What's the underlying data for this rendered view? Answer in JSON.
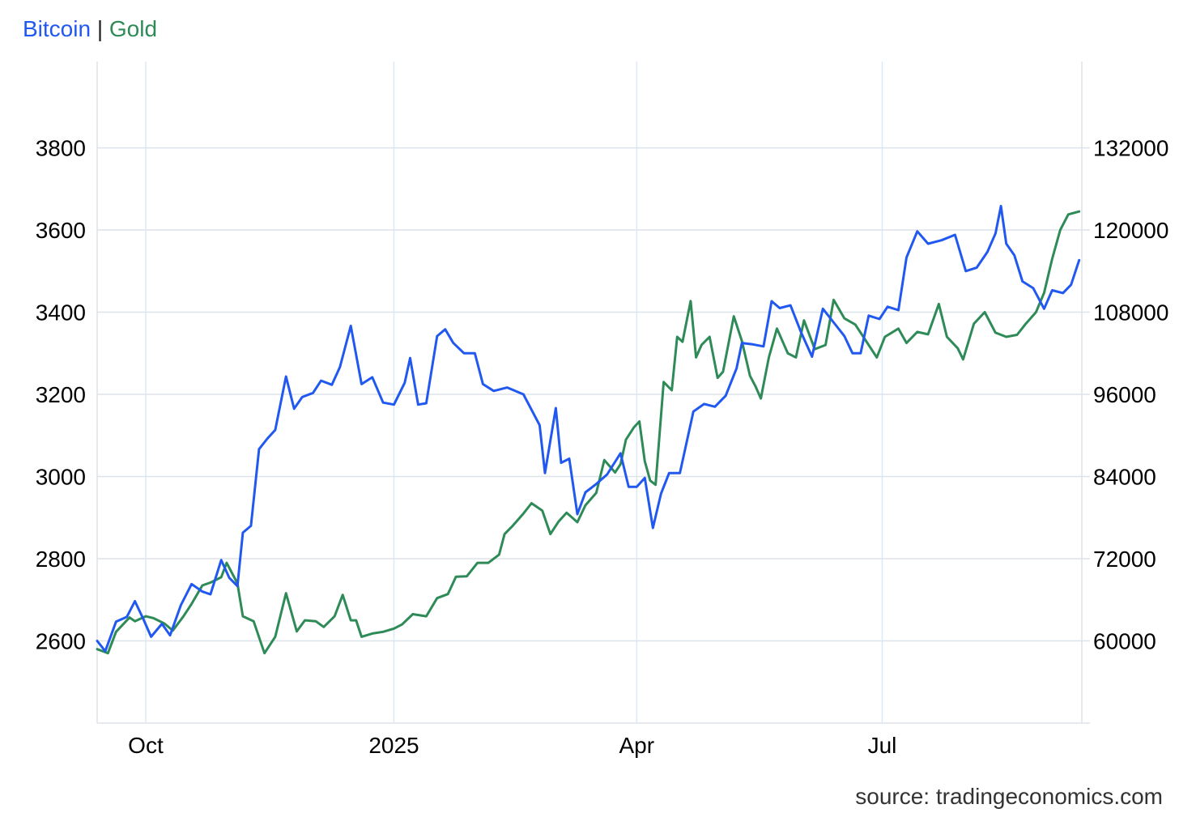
{
  "legend": {
    "bitcoin_label": "Bitcoin",
    "separator": "|",
    "gold_label": "Gold"
  },
  "source": "source: tradingeconomics.com",
  "colors": {
    "bitcoin": "#2158f0",
    "gold": "#2e8b57",
    "grid": "#dde3ea",
    "vgrid": "#dbeaf7"
  },
  "chart_data": {
    "type": "line",
    "grid": true,
    "legend_position": "top-left",
    "x_ticks": [
      {
        "label": "Oct",
        "date": "2024-10-01"
      },
      {
        "label": "2025",
        "date": "2025-01-01"
      },
      {
        "label": "Apr",
        "date": "2025-04-01"
      },
      {
        "label": "Jul",
        "date": "2025-07-01"
      }
    ],
    "xlim": [
      "2024-09-13",
      "2025-09-13"
    ],
    "y_left": {
      "ticks": [
        2600,
        2800,
        3000,
        3200,
        3400,
        3600,
        3800
      ],
      "ylim": [
        2400,
        4010
      ]
    },
    "y_right": {
      "ticks": [
        60000,
        72000,
        84000,
        96000,
        108000,
        120000,
        132000
      ],
      "ylim": [
        48000,
        144600
      ]
    },
    "series": [
      {
        "name": "Bitcoin",
        "axis": "right",
        "color": "#2158f0",
        "points": [
          [
            "2024-09-13",
            60000
          ],
          [
            "2024-09-16",
            58500
          ],
          [
            "2024-09-20",
            62800
          ],
          [
            "2024-09-24",
            63500
          ],
          [
            "2024-09-27",
            65800
          ],
          [
            "2024-09-30",
            63300
          ],
          [
            "2024-10-03",
            60600
          ],
          [
            "2024-10-07",
            62500
          ],
          [
            "2024-10-10",
            60800
          ],
          [
            "2024-10-14",
            65200
          ],
          [
            "2024-10-18",
            68300
          ],
          [
            "2024-10-22",
            67200
          ],
          [
            "2024-10-25",
            66800
          ],
          [
            "2024-10-29",
            71800
          ],
          [
            "2024-11-01",
            69200
          ],
          [
            "2024-11-04",
            68000
          ],
          [
            "2024-11-06",
            75800
          ],
          [
            "2024-11-09",
            76800
          ],
          [
            "2024-11-12",
            88000
          ],
          [
            "2024-11-15",
            89500
          ],
          [
            "2024-11-18",
            90800
          ],
          [
            "2024-11-22",
            98600
          ],
          [
            "2024-11-25",
            93900
          ],
          [
            "2024-11-28",
            95600
          ],
          [
            "2024-12-02",
            96200
          ],
          [
            "2024-12-05",
            98000
          ],
          [
            "2024-12-09",
            97400
          ],
          [
            "2024-12-12",
            100000
          ],
          [
            "2024-12-16",
            106000
          ],
          [
            "2024-12-20",
            97500
          ],
          [
            "2024-12-24",
            98500
          ],
          [
            "2024-12-28",
            94800
          ],
          [
            "2025-01-01",
            94500
          ],
          [
            "2025-01-05",
            97700
          ],
          [
            "2025-01-07",
            101300
          ],
          [
            "2025-01-10",
            94500
          ],
          [
            "2025-01-13",
            94700
          ],
          [
            "2025-01-17",
            104500
          ],
          [
            "2025-01-20",
            105500
          ],
          [
            "2025-01-23",
            103500
          ],
          [
            "2025-01-27",
            102000
          ],
          [
            "2025-01-31",
            102000
          ],
          [
            "2025-02-03",
            97500
          ],
          [
            "2025-02-07",
            96500
          ],
          [
            "2025-02-12",
            97000
          ],
          [
            "2025-02-18",
            96000
          ],
          [
            "2025-02-24",
            91500
          ],
          [
            "2025-02-26",
            84500
          ],
          [
            "2025-03-02",
            94000
          ],
          [
            "2025-03-04",
            86000
          ],
          [
            "2025-03-07",
            86600
          ],
          [
            "2025-03-10",
            78500
          ],
          [
            "2025-03-13",
            81700
          ],
          [
            "2025-03-17",
            82900
          ],
          [
            "2025-03-21",
            84300
          ],
          [
            "2025-03-26",
            87400
          ],
          [
            "2025-03-29",
            82500
          ],
          [
            "2025-04-01",
            82500
          ],
          [
            "2025-04-04",
            83800
          ],
          [
            "2025-04-07",
            76500
          ],
          [
            "2025-04-10",
            81500
          ],
          [
            "2025-04-13",
            84500
          ],
          [
            "2025-04-17",
            84500
          ],
          [
            "2025-04-22",
            93500
          ],
          [
            "2025-04-26",
            94600
          ],
          [
            "2025-04-30",
            94200
          ],
          [
            "2025-05-04",
            95800
          ],
          [
            "2025-05-08",
            99800
          ],
          [
            "2025-05-10",
            103500
          ],
          [
            "2025-05-14",
            103300
          ],
          [
            "2025-05-18",
            103000
          ],
          [
            "2025-05-21",
            109600
          ],
          [
            "2025-05-24",
            108600
          ],
          [
            "2025-05-28",
            109000
          ],
          [
            "2025-06-01",
            105000
          ],
          [
            "2025-06-05",
            101500
          ],
          [
            "2025-06-09",
            108500
          ],
          [
            "2025-06-12",
            107000
          ],
          [
            "2025-06-17",
            104500
          ],
          [
            "2025-06-20",
            102000
          ],
          [
            "2025-06-23",
            102000
          ],
          [
            "2025-06-26",
            107500
          ],
          [
            "2025-06-30",
            107000
          ],
          [
            "2025-07-03",
            108800
          ],
          [
            "2025-07-07",
            108300
          ],
          [
            "2025-07-10",
            116000
          ],
          [
            "2025-07-14",
            119800
          ],
          [
            "2025-07-18",
            118000
          ],
          [
            "2025-07-23",
            118500
          ],
          [
            "2025-07-28",
            119300
          ],
          [
            "2025-08-01",
            114000
          ],
          [
            "2025-08-05",
            114500
          ],
          [
            "2025-08-09",
            116800
          ],
          [
            "2025-08-12",
            119500
          ],
          [
            "2025-08-14",
            123500
          ],
          [
            "2025-08-16",
            118000
          ],
          [
            "2025-08-19",
            116300
          ],
          [
            "2025-08-22",
            112500
          ],
          [
            "2025-08-26",
            111500
          ],
          [
            "2025-08-30",
            108500
          ],
          [
            "2025-09-02",
            111200
          ],
          [
            "2025-09-06",
            110800
          ],
          [
            "2025-09-09",
            112000
          ],
          [
            "2025-09-12",
            115600
          ]
        ]
      },
      {
        "name": "Gold",
        "axis": "left",
        "color": "#2e8b57",
        "points": [
          [
            "2024-09-13",
            2580
          ],
          [
            "2024-09-17",
            2570
          ],
          [
            "2024-09-20",
            2622
          ],
          [
            "2024-09-25",
            2657
          ],
          [
            "2024-09-27",
            2648
          ],
          [
            "2024-10-01",
            2660
          ],
          [
            "2024-10-04",
            2655
          ],
          [
            "2024-10-08",
            2642
          ],
          [
            "2024-10-11",
            2625
          ],
          [
            "2024-10-15",
            2660
          ],
          [
            "2024-10-18",
            2690
          ],
          [
            "2024-10-22",
            2735
          ],
          [
            "2024-10-25",
            2742
          ],
          [
            "2024-10-29",
            2755
          ],
          [
            "2024-10-31",
            2790
          ],
          [
            "2024-11-04",
            2740
          ],
          [
            "2024-11-06",
            2660
          ],
          [
            "2024-11-10",
            2648
          ],
          [
            "2024-11-14",
            2570
          ],
          [
            "2024-11-18",
            2610
          ],
          [
            "2024-11-22",
            2716
          ],
          [
            "2024-11-26",
            2623
          ],
          [
            "2024-11-29",
            2650
          ],
          [
            "2024-12-03",
            2648
          ],
          [
            "2024-12-06",
            2634
          ],
          [
            "2024-12-10",
            2660
          ],
          [
            "2024-12-13",
            2712
          ],
          [
            "2024-12-16",
            2650
          ],
          [
            "2024-12-18",
            2650
          ],
          [
            "2024-12-20",
            2610
          ],
          [
            "2024-12-24",
            2618
          ],
          [
            "2024-12-28",
            2622
          ],
          [
            "2025-01-01",
            2630
          ],
          [
            "2025-01-04",
            2640
          ],
          [
            "2025-01-08",
            2665
          ],
          [
            "2025-01-13",
            2660
          ],
          [
            "2025-01-17",
            2704
          ],
          [
            "2025-01-21",
            2714
          ],
          [
            "2025-01-24",
            2756
          ],
          [
            "2025-01-28",
            2757
          ],
          [
            "2025-02-01",
            2790
          ],
          [
            "2025-02-05",
            2790
          ],
          [
            "2025-02-09",
            2810
          ],
          [
            "2025-02-11",
            2860
          ],
          [
            "2025-02-14",
            2880
          ],
          [
            "2025-02-18",
            2910
          ],
          [
            "2025-02-21",
            2935
          ],
          [
            "2025-02-25",
            2917
          ],
          [
            "2025-02-28",
            2860
          ],
          [
            "2025-03-03",
            2890
          ],
          [
            "2025-03-06",
            2912
          ],
          [
            "2025-03-10",
            2889
          ],
          [
            "2025-03-13",
            2930
          ],
          [
            "2025-03-17",
            2960
          ],
          [
            "2025-03-20",
            3040
          ],
          [
            "2025-03-24",
            3010
          ],
          [
            "2025-03-26",
            3030
          ],
          [
            "2025-03-28",
            3090
          ],
          [
            "2025-03-31",
            3120
          ],
          [
            "2025-04-02",
            3134
          ],
          [
            "2025-04-04",
            3037
          ],
          [
            "2025-04-06",
            2990
          ],
          [
            "2025-04-08",
            2980
          ],
          [
            "2025-04-11",
            3230
          ],
          [
            "2025-04-14",
            3210
          ],
          [
            "2025-04-16",
            3340
          ],
          [
            "2025-04-18",
            3328
          ],
          [
            "2025-04-21",
            3427
          ],
          [
            "2025-04-23",
            3290
          ],
          [
            "2025-04-25",
            3320
          ],
          [
            "2025-04-28",
            3340
          ],
          [
            "2025-05-01",
            3240
          ],
          [
            "2025-05-03",
            3255
          ],
          [
            "2025-05-07",
            3390
          ],
          [
            "2025-05-10",
            3330
          ],
          [
            "2025-05-13",
            3245
          ],
          [
            "2025-05-15",
            3220
          ],
          [
            "2025-05-17",
            3190
          ],
          [
            "2025-05-20",
            3290
          ],
          [
            "2025-05-23",
            3360
          ],
          [
            "2025-05-27",
            3300
          ],
          [
            "2025-05-30",
            3290
          ],
          [
            "2025-06-02",
            3380
          ],
          [
            "2025-06-06",
            3310
          ],
          [
            "2025-06-10",
            3320
          ],
          [
            "2025-06-13",
            3430
          ],
          [
            "2025-06-17",
            3385
          ],
          [
            "2025-06-21",
            3370
          ],
          [
            "2025-06-25",
            3330
          ],
          [
            "2025-06-29",
            3290
          ],
          [
            "2025-07-02",
            3340
          ],
          [
            "2025-07-07",
            3360
          ],
          [
            "2025-07-10",
            3325
          ],
          [
            "2025-07-14",
            3352
          ],
          [
            "2025-07-18",
            3346
          ],
          [
            "2025-07-22",
            3420
          ],
          [
            "2025-07-25",
            3340
          ],
          [
            "2025-07-29",
            3312
          ],
          [
            "2025-07-31",
            3285
          ],
          [
            "2025-08-04",
            3372
          ],
          [
            "2025-08-08",
            3400
          ],
          [
            "2025-08-12",
            3350
          ],
          [
            "2025-08-16",
            3340
          ],
          [
            "2025-08-20",
            3345
          ],
          [
            "2025-08-23",
            3370
          ],
          [
            "2025-08-27",
            3400
          ],
          [
            "2025-08-30",
            3447
          ],
          [
            "2025-09-02",
            3530
          ],
          [
            "2025-09-05",
            3600
          ],
          [
            "2025-09-08",
            3638
          ],
          [
            "2025-09-12",
            3645
          ]
        ]
      }
    ]
  }
}
